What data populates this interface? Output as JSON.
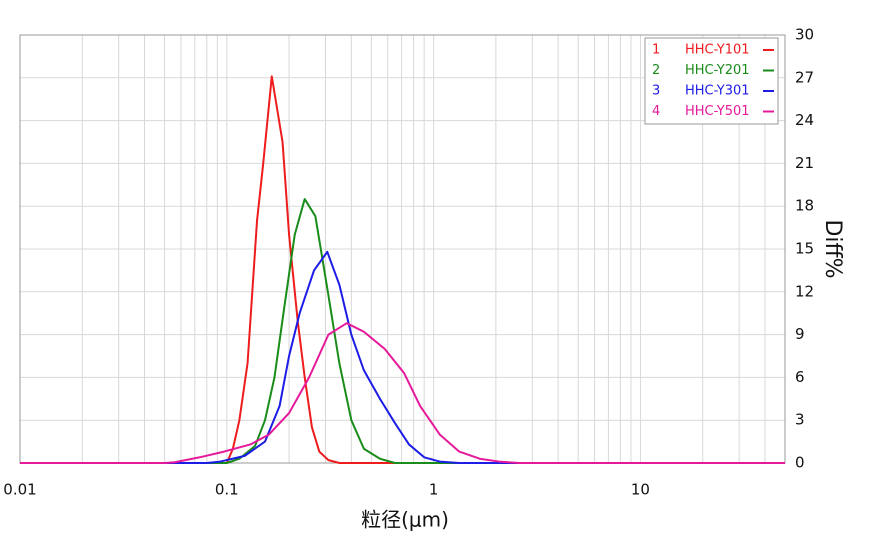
{
  "chart_data": {
    "type": "line",
    "x_label": "粒径(μm)",
    "y_label": "Diff%",
    "xscale": "log",
    "xlim": [
      0.01,
      50
    ],
    "xticks": [
      0.01,
      0.1,
      1,
      10
    ],
    "xgrid_minor": [
      0.02,
      0.03,
      0.04,
      0.05,
      0.06,
      0.07,
      0.08,
      0.09,
      0.2,
      0.3,
      0.4,
      0.5,
      0.6,
      0.7,
      0.8,
      0.9,
      2,
      3,
      4,
      5,
      6,
      7,
      8,
      9,
      20,
      30,
      40
    ],
    "ylim": [
      0,
      30
    ],
    "yticks": [
      0,
      3,
      6,
      9,
      12,
      15,
      18,
      21,
      24,
      27,
      30
    ],
    "grid": true,
    "legend_position": "upper right",
    "series": [
      {
        "label": "1",
        "name": "HHC-Y101",
        "color": "#ee1c1c",
        "x": [
          0.01,
          0.1,
          0.107,
          0.115,
          0.126,
          0.14,
          0.15,
          0.165,
          0.186,
          0.2,
          0.22,
          0.238,
          0.258,
          0.28,
          0.31,
          0.35,
          50
        ],
        "values": [
          0,
          0,
          1,
          3,
          7,
          17,
          21,
          27.1,
          22.5,
          16,
          10,
          6,
          2.5,
          0.8,
          0.2,
          0,
          0
        ]
      },
      {
        "label": "2",
        "name": "HHC-Y201",
        "color": "#1a8c1a",
        "x": [
          0.01,
          0.1,
          0.115,
          0.137,
          0.153,
          0.17,
          0.19,
          0.213,
          0.238,
          0.268,
          0.308,
          0.35,
          0.4,
          0.46,
          0.55,
          0.65,
          50
        ],
        "values": [
          0,
          0,
          0.3,
          1.2,
          3,
          6,
          11,
          16,
          18.5,
          17.3,
          12,
          7,
          3,
          1,
          0.3,
          0,
          0
        ]
      },
      {
        "label": "3",
        "name": "HHC-Y301",
        "color": "#1c1ce6",
        "x": [
          0.01,
          0.08,
          0.093,
          0.122,
          0.153,
          0.18,
          0.2,
          0.225,
          0.264,
          0.306,
          0.35,
          0.4,
          0.46,
          0.55,
          0.65,
          0.76,
          0.9,
          1.07,
          1.33,
          50
        ],
        "values": [
          0,
          0,
          0.1,
          0.5,
          1.5,
          4,
          7.5,
          10.5,
          13.5,
          14.8,
          12.5,
          9,
          6.5,
          4.5,
          2.8,
          1.3,
          0.4,
          0.1,
          0,
          0
        ]
      },
      {
        "label": "4",
        "name": "HHC-Y501",
        "color": "#e6199a",
        "x": [
          0.01,
          0.05,
          0.056,
          0.074,
          0.097,
          0.13,
          0.16,
          0.2,
          0.25,
          0.31,
          0.38,
          0.46,
          0.58,
          0.72,
          0.86,
          1.07,
          1.33,
          1.67,
          2.07,
          2.6,
          50
        ],
        "values": [
          0,
          0,
          0.05,
          0.4,
          0.8,
          1.3,
          2,
          3.5,
          6,
          9,
          9.8,
          9.2,
          8,
          6.3,
          4,
          2,
          0.8,
          0.3,
          0.1,
          0,
          0
        ]
      }
    ]
  }
}
